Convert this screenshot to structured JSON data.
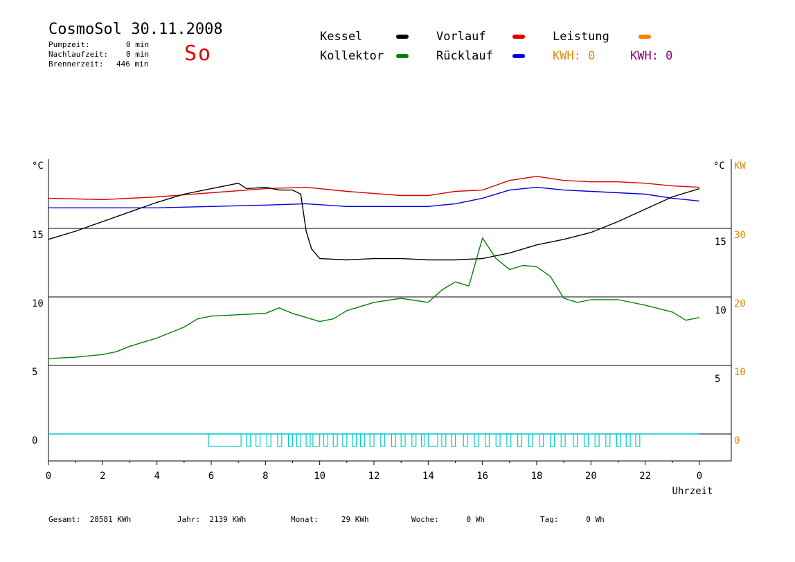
{
  "header": {
    "title": "CosmoSol 30.11.2008",
    "day": "So",
    "stats": [
      {
        "label": "Pumpzeit:",
        "value": "0 min"
      },
      {
        "label": "Nachlaufzeit:",
        "value": "0 min"
      },
      {
        "label": "Brennerzeit:",
        "value": "446 min"
      }
    ]
  },
  "legend": {
    "kessel": {
      "label": "Kessel",
      "color": "#000000"
    },
    "kollektor": {
      "label": "Kollektor",
      "color": "#008000"
    },
    "vorlauf": {
      "label": "Vorlauf",
      "color": "#dd0000"
    },
    "ruecklauf": {
      "label": "Rücklauf",
      "color": "#0000dd"
    },
    "leistung": {
      "label": "Leistung",
      "color": "#ff8000"
    },
    "kwh_orange": {
      "text": "KWH: 0",
      "color": "#e08a00"
    },
    "kwh_purple": {
      "text": "KWH: 0",
      "color": "#800080"
    }
  },
  "footer": {
    "gesamt": {
      "label": "Gesamt:",
      "value": "28581 KWh"
    },
    "jahr": {
      "label": "Jahr:",
      "value": "2139 KWh"
    },
    "monat": {
      "label": "Monat:",
      "value": "29 KWh"
    },
    "woche": {
      "label": "Woche:",
      "value": "0 Wh"
    },
    "tag": {
      "label": "Tag:",
      "value": "0 Wh"
    }
  },
  "chart_data": {
    "type": "line",
    "xlabel": "Uhrzeit",
    "x_ticks": [
      "0",
      "2",
      "4",
      "6",
      "8",
      "10",
      "12",
      "14",
      "16",
      "18",
      "20",
      "22",
      "0"
    ],
    "y_left_unit": "°C",
    "y_right_unit": "°C",
    "y_right2_unit": "KW",
    "y_left_ticks": [
      "15",
      "10",
      "5",
      "0"
    ],
    "y_right_ticks": [
      "15",
      "10",
      "5"
    ],
    "y_right2_ticks": [
      "30",
      "20",
      "10",
      "0"
    ],
    "ylim": [
      -2,
      20
    ],
    "xlim": [
      0,
      25
    ],
    "grid_y": [
      0,
      5,
      10,
      15
    ],
    "series": [
      {
        "name": "Vorlauf",
        "color": "#dd0000",
        "x": [
          0,
          2,
          4,
          6,
          8,
          9.5,
          11,
          13,
          14,
          15,
          16,
          17,
          18,
          19,
          20,
          21,
          22,
          23,
          24
        ],
        "y": [
          17.2,
          17.1,
          17.3,
          17.6,
          17.9,
          18.0,
          17.7,
          17.4,
          17.4,
          17.7,
          17.8,
          18.5,
          18.8,
          18.5,
          18.4,
          18.4,
          18.3,
          18.1,
          18.0
        ]
      },
      {
        "name": "Rücklauf",
        "color": "#0000dd",
        "x": [
          0,
          2,
          4,
          6,
          8,
          9.5,
          11,
          13,
          14,
          15,
          16,
          17,
          18,
          19,
          20,
          21,
          22,
          23,
          24
        ],
        "y": [
          16.5,
          16.5,
          16.5,
          16.6,
          16.7,
          16.8,
          16.6,
          16.6,
          16.6,
          16.8,
          17.2,
          17.8,
          18.0,
          17.8,
          17.7,
          17.6,
          17.5,
          17.2,
          17.0
        ]
      },
      {
        "name": "Kessel",
        "color": "#000000",
        "x": [
          0,
          1,
          2,
          3,
          4,
          5,
          6,
          7,
          7.3,
          8,
          8.5,
          9,
          9.3,
          9.5,
          9.7,
          10,
          11,
          12,
          13,
          14,
          15,
          16,
          17,
          18,
          19,
          20,
          21,
          22,
          23,
          24
        ],
        "y": [
          14.2,
          14.8,
          15.5,
          16.2,
          16.9,
          17.5,
          17.9,
          18.3,
          17.9,
          18.0,
          17.8,
          17.8,
          17.5,
          14.8,
          13.5,
          12.8,
          12.7,
          12.8,
          12.8,
          12.7,
          12.7,
          12.8,
          13.2,
          13.8,
          14.2,
          14.7,
          15.5,
          16.4,
          17.3,
          17.9
        ]
      },
      {
        "name": "Kollektor",
        "color": "#008000",
        "x": [
          0,
          1,
          2,
          2.5,
          3,
          4,
          5,
          5.5,
          6,
          7,
          8,
          8.5,
          9,
          10,
          10.5,
          11,
          12,
          13,
          14,
          14.5,
          15,
          15.5,
          16,
          16.5,
          17,
          17.5,
          18,
          18.5,
          19,
          19.5,
          20,
          21,
          22,
          23,
          23.5,
          24
        ],
        "y": [
          5.5,
          5.6,
          5.8,
          6.0,
          6.4,
          7.0,
          7.8,
          8.4,
          8.6,
          8.7,
          8.8,
          9.2,
          8.8,
          8.2,
          8.4,
          9.0,
          9.6,
          9.9,
          9.6,
          10.5,
          11.1,
          10.8,
          14.3,
          12.8,
          12.0,
          12.3,
          12.2,
          11.5,
          9.9,
          9.6,
          9.8,
          9.8,
          9.4,
          8.9,
          8.3,
          8.5
        ]
      }
    ],
    "pump_pulses": [
      {
        "start": 5.9,
        "end": 7.1
      },
      {
        "start": 7.3,
        "end": 7.45
      },
      {
        "start": 7.65,
        "end": 7.8
      },
      {
        "start": 8.05,
        "end": 8.2
      },
      {
        "start": 8.45,
        "end": 8.6
      },
      {
        "start": 8.85,
        "end": 9.0
      },
      {
        "start": 9.15,
        "end": 9.3
      },
      {
        "start": 9.5,
        "end": 9.65
      },
      {
        "start": 9.75,
        "end": 10.0
      },
      {
        "start": 10.15,
        "end": 10.3
      },
      {
        "start": 10.5,
        "end": 10.65
      },
      {
        "start": 10.85,
        "end": 11.0
      },
      {
        "start": 11.2,
        "end": 11.35
      },
      {
        "start": 11.5,
        "end": 11.65
      },
      {
        "start": 11.85,
        "end": 12.0
      },
      {
        "start": 12.25,
        "end": 12.4
      },
      {
        "start": 12.65,
        "end": 12.8
      },
      {
        "start": 13.0,
        "end": 13.15
      },
      {
        "start": 13.4,
        "end": 13.55
      },
      {
        "start": 13.75,
        "end": 13.85
      },
      {
        "start": 14.0,
        "end": 14.35
      },
      {
        "start": 14.5,
        "end": 14.65
      },
      {
        "start": 14.85,
        "end": 15.0
      },
      {
        "start": 15.3,
        "end": 15.45
      },
      {
        "start": 15.7,
        "end": 15.85
      },
      {
        "start": 16.1,
        "end": 16.25
      },
      {
        "start": 16.5,
        "end": 16.65
      },
      {
        "start": 16.9,
        "end": 17.05
      },
      {
        "start": 17.3,
        "end": 17.45
      },
      {
        "start": 17.7,
        "end": 17.85
      },
      {
        "start": 18.1,
        "end": 18.25
      },
      {
        "start": 18.5,
        "end": 18.65
      },
      {
        "start": 18.9,
        "end": 19.05
      },
      {
        "start": 19.35,
        "end": 19.5
      },
      {
        "start": 19.75,
        "end": 19.9
      },
      {
        "start": 20.15,
        "end": 20.3
      },
      {
        "start": 20.55,
        "end": 20.7
      },
      {
        "start": 20.95,
        "end": 21.1
      },
      {
        "start": 21.3,
        "end": 21.45
      },
      {
        "start": 21.65,
        "end": 21.8
      }
    ],
    "pump_color": "#00cccc"
  }
}
